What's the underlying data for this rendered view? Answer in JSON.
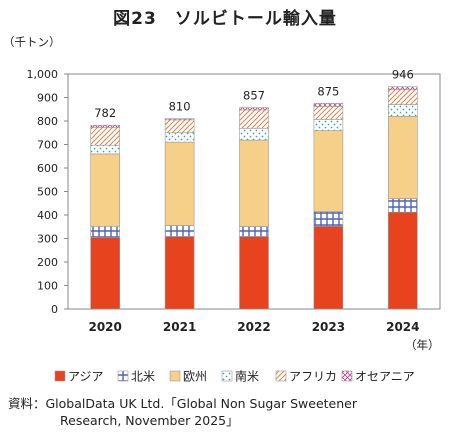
{
  "title": "図23　ソルビトール輸入量",
  "chart_data": {
    "type": "bar",
    "stacked": true,
    "categories": [
      "2020",
      "2021",
      "2022",
      "2023",
      "2024"
    ],
    "ylabel": "（千トン）",
    "xlabel": "（年）",
    "ylim": [
      0,
      1000
    ],
    "yticks": [
      "0",
      "100",
      "200",
      "300",
      "400",
      "500",
      "600",
      "700",
      "800",
      "900",
      "1,000"
    ],
    "totals": [
      "782",
      "810",
      "857",
      "875",
      "946"
    ],
    "grid": false,
    "legend_position": "bottom",
    "series": [
      {
        "name": "アジア",
        "color": "#e8431f",
        "values": [
          305,
          308,
          308,
          352,
          412
        ]
      },
      {
        "name": "北米",
        "color": "#5b73c4",
        "values": [
          47,
          47,
          43,
          62,
          58
        ]
      },
      {
        "name": "欧州",
        "color": "#f6cf88",
        "values": [
          308,
          355,
          368,
          345,
          350
        ]
      },
      {
        "name": "南米",
        "color": "#8fd4d4",
        "values": [
          37,
          40,
          50,
          48,
          50
        ]
      },
      {
        "name": "アフリカ",
        "color": "#e6a87a",
        "values": [
          75,
          55,
          78,
          55,
          63
        ]
      },
      {
        "name": "オセアニア",
        "color": "#c84f96",
        "values": [
          10,
          5,
          10,
          13,
          13
        ]
      }
    ]
  },
  "source": {
    "line1": "資料：GlobalData UK Ltd.「Global Non Sugar Sweetener",
    "line2": "Research, November 2025」"
  }
}
